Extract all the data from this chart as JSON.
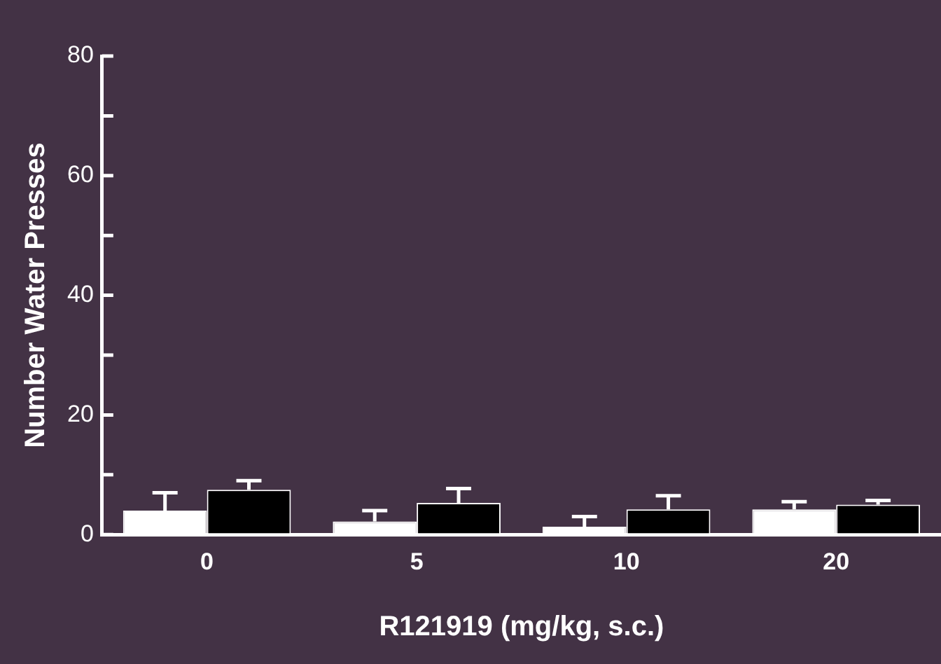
{
  "chart_data": {
    "type": "bar",
    "xlabel": "R121919 (mg/kg, s.c.)",
    "ylabel": "Number Water Presses",
    "categories": [
      "0",
      "5",
      "10",
      "20"
    ],
    "series": [
      {
        "color": "#ffffff",
        "values": [
          4,
          2.2,
          1.3,
          4.2
        ],
        "errors": [
          [
            4,
            7
          ],
          [
            2.2,
            4
          ],
          [
            1.3,
            3
          ],
          [
            4.2,
            5.5
          ]
        ]
      },
      {
        "color": "#000000",
        "values": [
          7.5,
          5.3,
          4.2,
          5
        ],
        "errors": [
          [
            7.5,
            9
          ],
          [
            5.3,
            7.7
          ],
          [
            4.2,
            6.5
          ],
          [
            5,
            5.7
          ]
        ]
      }
    ],
    "ylim": [
      0,
      80
    ],
    "yticks": [
      0,
      {
        "value": 10,
        "label": null
      },
      20,
      {
        "value": 30,
        "label": null
      },
      40,
      {
        "value": 50,
        "label": null
      },
      60,
      {
        "value": 70,
        "label": null
      },
      80
    ],
    "grid": false,
    "legend": false
  }
}
